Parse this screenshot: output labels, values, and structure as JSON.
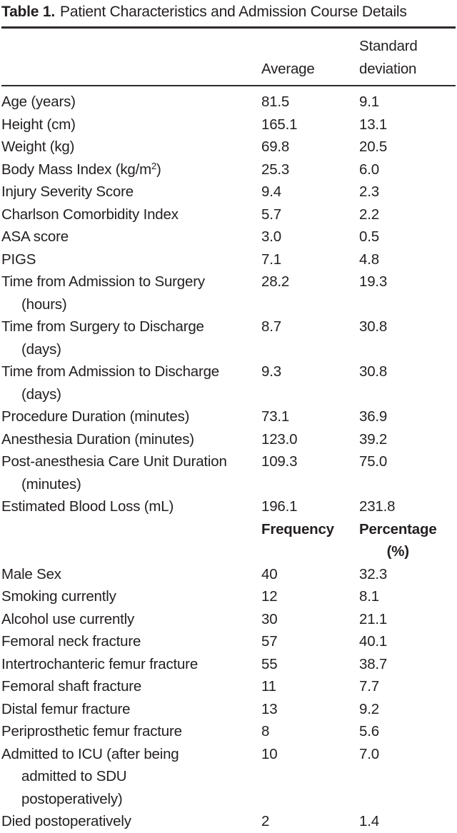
{
  "title": {
    "label": "Table 1.",
    "text": "Patient Characteristics and Admission Course Details"
  },
  "columns": {
    "label": "",
    "average": "Average",
    "standard_deviation": "Standard deviation"
  },
  "stats_rows": [
    {
      "label": "Age (years)",
      "average": "81.5",
      "sd": "9.1"
    },
    {
      "label": "Height (cm)",
      "average": "165.1",
      "sd": "13.1"
    },
    {
      "label": "Weight (kg)",
      "average": "69.8",
      "sd": "20.5"
    },
    {
      "label": "Body Mass Index (kg/m^2)",
      "average": "25.3",
      "sd": "6.0"
    },
    {
      "label": "Injury Severity Score",
      "average": "9.4",
      "sd": "2.3"
    },
    {
      "label": "Charlson Comorbidity Index",
      "average": "5.7",
      "sd": "2.2"
    },
    {
      "label": "ASA score",
      "average": "3.0",
      "sd": "0.5"
    },
    {
      "label": "PIGS",
      "average": "7.1",
      "sd": "4.8"
    },
    {
      "label": "Time from Admission to Surgery\n(hours)",
      "average": "28.2",
      "sd": "19.3"
    },
    {
      "label": "Time from Surgery to Discharge\n(days)",
      "average": "8.7",
      "sd": "30.8"
    },
    {
      "label": "Time from Admission to Discharge\n(days)",
      "average": "9.3",
      "sd": "30.8"
    },
    {
      "label": "Procedure Duration (minutes)",
      "average": "73.1",
      "sd": "36.9"
    },
    {
      "label": "Anesthesia Duration (minutes)",
      "average": "123.0",
      "sd": "39.2"
    },
    {
      "label": "Post-anesthesia Care Unit Duration\n(minutes)",
      "average": "109.3",
      "sd": "75.0"
    },
    {
      "label": "Estimated Blood Loss (mL)",
      "average": "196.1",
      "sd": "231.8"
    }
  ],
  "subheader": {
    "frequency": "Frequency",
    "percentage": "Percentage",
    "percentage_unit": "(%)"
  },
  "frequency_rows": [
    {
      "label": "Male Sex",
      "frequency": "40",
      "percentage": "32.3"
    },
    {
      "label": "Smoking currently",
      "frequency": "12",
      "percentage": "8.1"
    },
    {
      "label": "Alcohol use currently",
      "frequency": "30",
      "percentage": "21.1"
    },
    {
      "label": "Femoral neck fracture",
      "frequency": "57",
      "percentage": "40.1"
    },
    {
      "label": "Intertrochanteric femur fracture",
      "frequency": "55",
      "percentage": "38.7"
    },
    {
      "label": "Femoral shaft fracture",
      "frequency": "11",
      "percentage": "7.7"
    },
    {
      "label": "Distal femur fracture",
      "frequency": "13",
      "percentage": "9.2"
    },
    {
      "label": "Periprosthetic femur fracture",
      "frequency": "8",
      "percentage": "5.6"
    },
    {
      "label": "Admitted to ICU (after being\nadmitted to SDU\npostoperatively)",
      "frequency": "10",
      "percentage": "7.0"
    },
    {
      "label": "Died postoperatively",
      "frequency": "2",
      "percentage": "1.4"
    }
  ],
  "colors": {
    "background": "#ffffff",
    "text": "#231f20",
    "rule_dark": "#2e2a2b",
    "rule_light": "#8c8c8c"
  },
  "chart_data": {
    "type": "table",
    "title": "Table 1. Patient Characteristics and Admission Course Details",
    "sections": [
      {
        "columns": [
          "",
          "Average",
          "Standard deviation"
        ],
        "rows": [
          [
            "Age (years)",
            81.5,
            9.1
          ],
          [
            "Height (cm)",
            165.1,
            13.1
          ],
          [
            "Weight (kg)",
            69.8,
            20.5
          ],
          [
            "Body Mass Index (kg/m2)",
            25.3,
            6.0
          ],
          [
            "Injury Severity Score",
            9.4,
            2.3
          ],
          [
            "Charlson Comorbidity Index",
            5.7,
            2.2
          ],
          [
            "ASA score",
            3.0,
            0.5
          ],
          [
            "PIGS",
            7.1,
            4.8
          ],
          [
            "Time from Admission to Surgery (hours)",
            28.2,
            19.3
          ],
          [
            "Time from Surgery to Discharge (days)",
            8.7,
            30.8
          ],
          [
            "Time from Admission to Discharge (days)",
            9.3,
            30.8
          ],
          [
            "Procedure Duration (minutes)",
            73.1,
            36.9
          ],
          [
            "Anesthesia Duration (minutes)",
            123.0,
            39.2
          ],
          [
            "Post-anesthesia Care Unit Duration (minutes)",
            109.3,
            75.0
          ],
          [
            "Estimated Blood Loss (mL)",
            196.1,
            231.8
          ]
        ]
      },
      {
        "columns": [
          "",
          "Frequency",
          "Percentage (%)"
        ],
        "rows": [
          [
            "Male Sex",
            40,
            32.3
          ],
          [
            "Smoking currently",
            12,
            8.1
          ],
          [
            "Alcohol use currently",
            30,
            21.1
          ],
          [
            "Femoral neck fracture",
            57,
            40.1
          ],
          [
            "Intertrochanteric femur fracture",
            55,
            38.7
          ],
          [
            "Femoral shaft fracture",
            11,
            7.7
          ],
          [
            "Distal femur fracture",
            13,
            9.2
          ],
          [
            "Periprosthetic femur fracture",
            8,
            5.6
          ],
          [
            "Admitted to ICU (after being admitted to SDU postoperatively)",
            10,
            7.0
          ],
          [
            "Died postoperatively",
            2,
            1.4
          ]
        ]
      }
    ]
  }
}
